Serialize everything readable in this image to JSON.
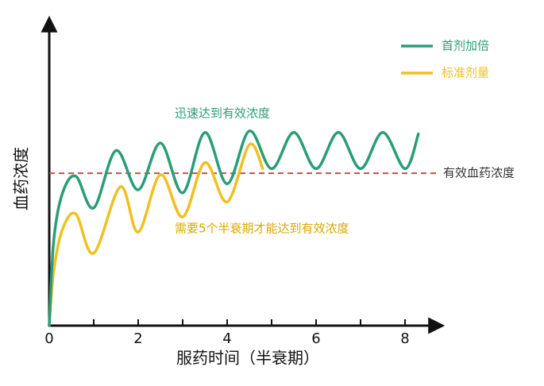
{
  "chart_data": {
    "type": "line",
    "xlabel": "服药时间（半衰期）",
    "ylabel": "血药浓度",
    "xlim": [
      0,
      8.5
    ],
    "ylim": [
      0,
      100
    ],
    "xticks": [
      0,
      2,
      4,
      6,
      8
    ],
    "xminorticks": [
      1,
      3,
      5,
      7
    ],
    "series": [
      {
        "name": "首剂加倍",
        "color": "#2a9d78",
        "x": [
          0,
          0.1,
          0.3,
          0.6,
          1.0,
          1.5,
          2.0,
          2.5,
          3.0,
          3.5,
          4.0,
          4.5,
          5.0,
          5.5,
          6.0,
          6.5,
          7.0,
          7.5,
          8.0,
          8.3
        ],
        "values": [
          0,
          28,
          44,
          49.5,
          39,
          58,
          45,
          60.5,
          44,
          64,
          47,
          64.5,
          52,
          64,
          52,
          64,
          52,
          64,
          52,
          63.5
        ]
      },
      {
        "name": "标准剂量",
        "color": "#f0c020",
        "x": [
          0,
          0.1,
          0.3,
          0.6,
          1.0,
          1.6,
          2.0,
          2.5,
          3.0,
          3.5,
          4.0,
          4.5,
          4.8
        ],
        "values": [
          0,
          18,
          32,
          37,
          24,
          46,
          31,
          50,
          36,
          54,
          41,
          60,
          52
        ]
      }
    ],
    "threshold": {
      "value": 50.5,
      "label": "有效血药浓度",
      "color": "#c0504d"
    },
    "annotations": [
      {
        "text": "迅速达到有效浓度",
        "color": "#2a9d78"
      },
      {
        "text": "需要5个半衰期才能达到有效浓度",
        "color": "#d9a800"
      }
    ]
  }
}
